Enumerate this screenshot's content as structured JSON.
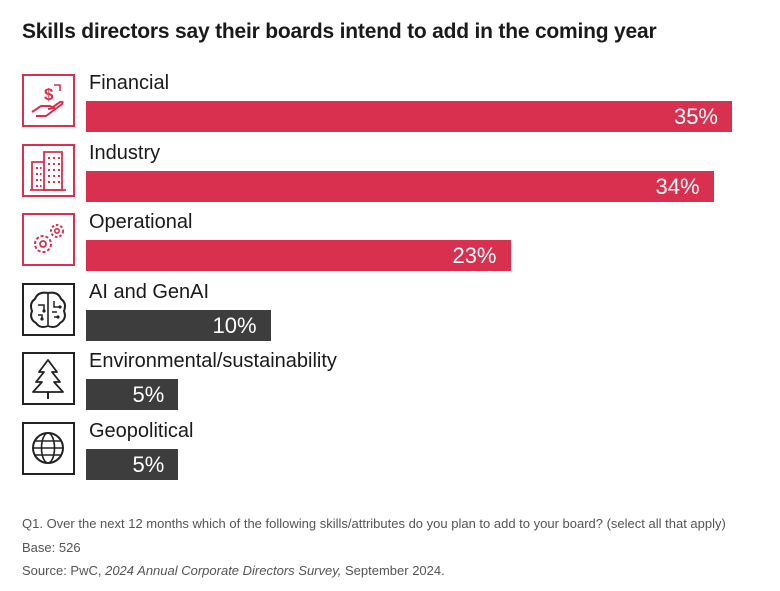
{
  "title": "Skills directors say their boards intend to add in the coming year",
  "colors": {
    "accent": "#d9304f",
    "dark": "#3d3d3d"
  },
  "chart_data": {
    "type": "bar",
    "orientation": "horizontal",
    "title": "Skills directors say their boards intend to add in the coming year",
    "categories": [
      "Financial",
      "Industry",
      "Operational",
      "AI and GenAI",
      "Environmental/sustainability",
      "Geopolitical"
    ],
    "values": [
      35,
      34,
      23,
      10,
      5,
      5
    ],
    "value_labels": [
      "35%",
      "34%",
      "23%",
      "10%",
      "5%",
      "5%"
    ],
    "bar_colors": [
      "#d9304f",
      "#d9304f",
      "#d9304f",
      "#3d3d3d",
      "#3d3d3d",
      "#3d3d3d"
    ],
    "icons": [
      "money-hand-icon",
      "building-icon",
      "gears-icon",
      "brain-circuit-icon",
      "pine-tree-icon",
      "globe-icon"
    ],
    "xlim": [
      0,
      35
    ],
    "grid": false,
    "legend": "none"
  },
  "footnotes": {
    "question": "Q1. Over the next 12 months which of the following skills/attributes do you plan to add to your board? (select all that apply)",
    "base": "Base: 526",
    "source_prefix": "Source: PwC, ",
    "source_title": "2024 Annual Corporate Directors Survey,",
    "source_suffix": " September 2024."
  }
}
